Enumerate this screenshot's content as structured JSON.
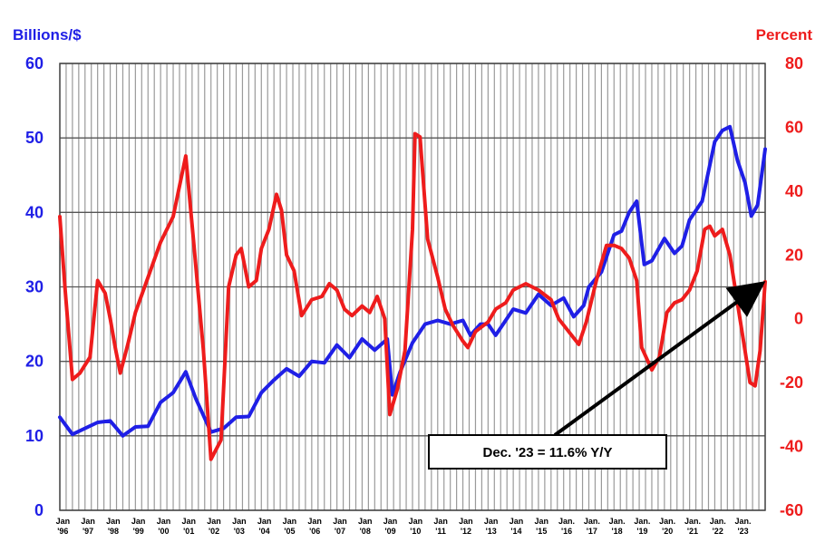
{
  "chart_data": {
    "type": "line",
    "left_axis_label": "Billions/$",
    "right_axis_label": "Percent",
    "left_ylim": [
      0,
      60
    ],
    "left_ticks": [
      "0",
      "10",
      "20",
      "30",
      "40",
      "50",
      "60"
    ],
    "right_ylim": [
      -60,
      80
    ],
    "right_ticks": [
      "-60",
      "-40",
      "-20",
      "0",
      "20",
      "40",
      "60",
      "80"
    ],
    "x_range": [
      1996.0,
      2024.0
    ],
    "x_ticks": [
      {
        "line1": "Jan",
        "line2": "'96"
      },
      {
        "line1": "Jan",
        "line2": "'97"
      },
      {
        "line1": "Jan",
        "line2": "'98"
      },
      {
        "line1": "Jan",
        "line2": "'99"
      },
      {
        "line1": "Jan",
        "line2": "'00"
      },
      {
        "line1": "Jan",
        "line2": "'01"
      },
      {
        "line1": "Jan",
        "line2": "'02"
      },
      {
        "line1": "Jan",
        "line2": "'03"
      },
      {
        "line1": "Jan",
        "line2": "'04"
      },
      {
        "line1": "Jan",
        "line2": "'05"
      },
      {
        "line1": "Jan",
        "line2": "'06"
      },
      {
        "line1": "Jan",
        "line2": "'07"
      },
      {
        "line1": "Jan",
        "line2": "'08"
      },
      {
        "line1": "Jan",
        "line2": "'09"
      },
      {
        "line1": "Jan",
        "line2": "'10"
      },
      {
        "line1": "Jan",
        "line2": "'11"
      },
      {
        "line1": "Jan",
        "line2": "'12"
      },
      {
        "line1": "Jan",
        "line2": "'13"
      },
      {
        "line1": "Jan",
        "line2": "'14"
      },
      {
        "line1": "Jan",
        "line2": "'15"
      },
      {
        "line1": "Jan.",
        "line2": "'16"
      },
      {
        "line1": "Jan.",
        "line2": "'17"
      },
      {
        "line1": "Jan.",
        "line2": "'18"
      },
      {
        "line1": "Jan.",
        "line2": "'19"
      },
      {
        "line1": "Jan.",
        "line2": "'20"
      },
      {
        "line1": "Jan.",
        "line2": "'21"
      },
      {
        "line1": "Jan.",
        "line2": "'22"
      },
      {
        "line1": "Jan.",
        "line2": "'23"
      }
    ],
    "grid": true,
    "series": [
      {
        "axis": "left",
        "color": "#1f1fe6",
        "points": [
          [
            1996.0,
            12.5
          ],
          [
            1996.5,
            10.2
          ],
          [
            1997.0,
            11.0
          ],
          [
            1997.5,
            11.8
          ],
          [
            1998.0,
            12.0
          ],
          [
            1998.5,
            10.0
          ],
          [
            1999.0,
            11.2
          ],
          [
            1999.5,
            11.3
          ],
          [
            2000.0,
            14.5
          ],
          [
            2000.5,
            15.8
          ],
          [
            2001.0,
            18.6
          ],
          [
            2001.4,
            15.0
          ],
          [
            2002.0,
            10.5
          ],
          [
            2002.5,
            11.0
          ],
          [
            2003.0,
            12.5
          ],
          [
            2003.5,
            12.6
          ],
          [
            2004.0,
            15.8
          ],
          [
            2004.5,
            17.5
          ],
          [
            2005.0,
            19.0
          ],
          [
            2005.5,
            18.0
          ],
          [
            2006.0,
            20.0
          ],
          [
            2006.5,
            19.8
          ],
          [
            2007.0,
            22.2
          ],
          [
            2007.5,
            20.5
          ],
          [
            2008.0,
            23.0
          ],
          [
            2008.5,
            21.5
          ],
          [
            2009.0,
            23.0
          ],
          [
            2009.2,
            15.5
          ],
          [
            2009.5,
            18.5
          ],
          [
            2010.0,
            22.5
          ],
          [
            2010.5,
            25.0
          ],
          [
            2011.0,
            25.5
          ],
          [
            2011.5,
            25.0
          ],
          [
            2012.0,
            25.5
          ],
          [
            2012.3,
            23.5
          ],
          [
            2012.7,
            25.0
          ],
          [
            2013.0,
            25.0
          ],
          [
            2013.3,
            23.5
          ],
          [
            2013.6,
            25.0
          ],
          [
            2014.0,
            27.0
          ],
          [
            2014.5,
            26.5
          ],
          [
            2015.0,
            29.0
          ],
          [
            2015.5,
            27.5
          ],
          [
            2016.0,
            28.5
          ],
          [
            2016.4,
            26.0
          ],
          [
            2016.8,
            27.5
          ],
          [
            2017.0,
            30.0
          ],
          [
            2017.5,
            32.0
          ],
          [
            2018.0,
            37.0
          ],
          [
            2018.3,
            37.5
          ],
          [
            2018.6,
            40.0
          ],
          [
            2018.9,
            41.5
          ],
          [
            2019.2,
            33.0
          ],
          [
            2019.5,
            33.5
          ],
          [
            2020.0,
            36.5
          ],
          [
            2020.4,
            34.5
          ],
          [
            2020.7,
            35.5
          ],
          [
            2021.0,
            39.0
          ],
          [
            2021.5,
            41.5
          ],
          [
            2022.0,
            49.5
          ],
          [
            2022.3,
            51.0
          ],
          [
            2022.6,
            51.5
          ],
          [
            2022.9,
            47.0
          ],
          [
            2023.2,
            44.0
          ],
          [
            2023.45,
            39.5
          ],
          [
            2023.7,
            41.0
          ],
          [
            2024.0,
            48.5
          ]
        ]
      },
      {
        "axis": "right",
        "color": "#ee1c1c",
        "points": [
          [
            1996.0,
            32.0
          ],
          [
            1996.2,
            10.0
          ],
          [
            1996.5,
            -19.0
          ],
          [
            1996.8,
            -17.0
          ],
          [
            1997.2,
            -12.0
          ],
          [
            1997.5,
            12.0
          ],
          [
            1997.8,
            8.0
          ],
          [
            1998.0,
            0.0
          ],
          [
            1998.2,
            -9.0
          ],
          [
            1998.4,
            -17.0
          ],
          [
            1998.7,
            -8.0
          ],
          [
            1999.0,
            2.0
          ],
          [
            1999.5,
            13.0
          ],
          [
            2000.0,
            24.0
          ],
          [
            2000.5,
            32.0
          ],
          [
            2001.0,
            51.0
          ],
          [
            2001.3,
            25.0
          ],
          [
            2001.7,
            -10.0
          ],
          [
            2002.0,
            -44.0
          ],
          [
            2002.4,
            -38.0
          ],
          [
            2002.7,
            10.0
          ],
          [
            2003.0,
            20.0
          ],
          [
            2003.2,
            22.0
          ],
          [
            2003.5,
            10.0
          ],
          [
            2003.8,
            12.0
          ],
          [
            2004.0,
            22.0
          ],
          [
            2004.3,
            28.0
          ],
          [
            2004.6,
            39.0
          ],
          [
            2004.8,
            34.0
          ],
          [
            2005.0,
            20.0
          ],
          [
            2005.3,
            15.0
          ],
          [
            2005.6,
            1.0
          ],
          [
            2006.0,
            6.0
          ],
          [
            2006.4,
            7.0
          ],
          [
            2006.7,
            11.0
          ],
          [
            2007.0,
            9.0
          ],
          [
            2007.3,
            3.0
          ],
          [
            2007.6,
            1.0
          ],
          [
            2008.0,
            4.0
          ],
          [
            2008.3,
            2.0
          ],
          [
            2008.6,
            7.0
          ],
          [
            2008.9,
            0.0
          ],
          [
            2009.1,
            -30.0
          ],
          [
            2009.4,
            -22.0
          ],
          [
            2009.7,
            -10.0
          ],
          [
            2010.0,
            28.0
          ],
          [
            2010.1,
            58.0
          ],
          [
            2010.3,
            57.0
          ],
          [
            2010.6,
            25.0
          ],
          [
            2011.0,
            13.0
          ],
          [
            2011.3,
            3.0
          ],
          [
            2011.6,
            -2.0
          ],
          [
            2012.0,
            -7.0
          ],
          [
            2012.2,
            -9.0
          ],
          [
            2012.5,
            -4.0
          ],
          [
            2013.0,
            -1.0
          ],
          [
            2013.3,
            3.0
          ],
          [
            2013.7,
            5.0
          ],
          [
            2014.0,
            9.0
          ],
          [
            2014.5,
            11.0
          ],
          [
            2015.0,
            9.0
          ],
          [
            2015.5,
            6.0
          ],
          [
            2015.8,
            0.0
          ],
          [
            2016.2,
            -4.0
          ],
          [
            2016.6,
            -8.0
          ],
          [
            2016.9,
            -1.0
          ],
          [
            2017.3,
            12.0
          ],
          [
            2017.7,
            23.0
          ],
          [
            2018.0,
            23.0
          ],
          [
            2018.3,
            22.0
          ],
          [
            2018.6,
            19.0
          ],
          [
            2018.9,
            12.0
          ],
          [
            2019.1,
            -9.0
          ],
          [
            2019.5,
            -16.0
          ],
          [
            2019.8,
            -12.0
          ],
          [
            2020.1,
            2.0
          ],
          [
            2020.4,
            5.0
          ],
          [
            2020.7,
            6.0
          ],
          [
            2021.0,
            9.0
          ],
          [
            2021.3,
            15.0
          ],
          [
            2021.6,
            28.0
          ],
          [
            2021.8,
            29.0
          ],
          [
            2022.0,
            26.0
          ],
          [
            2022.3,
            28.0
          ],
          [
            2022.6,
            20.0
          ],
          [
            2022.9,
            5.0
          ],
          [
            2023.2,
            -10.0
          ],
          [
            2023.4,
            -20.0
          ],
          [
            2023.6,
            -21.0
          ],
          [
            2023.8,
            -10.0
          ],
          [
            2024.0,
            11.6
          ]
        ]
      }
    ],
    "annotation": {
      "text": "Dec. '23 = 11.6% Y/Y",
      "arrow_target": {
        "x": 2024.0,
        "y": 11.6,
        "axis": "right"
      }
    }
  },
  "colors": {
    "left_axis": "#1f1fe6",
    "right_axis": "#ee1c1c",
    "grid": "#9a9a9a"
  }
}
